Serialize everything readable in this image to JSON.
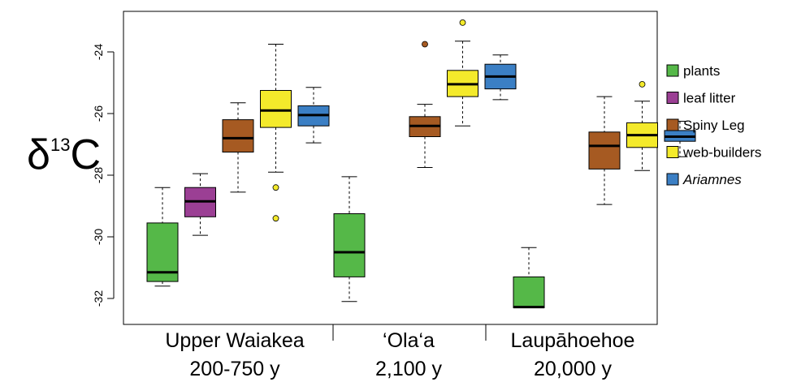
{
  "chart_data": {
    "type": "boxplot",
    "ylabel": {
      "main": "δ",
      "sup": "13",
      "tail": "C"
    },
    "ylim": [
      -32.6,
      -22.8
    ],
    "yticks": [
      -24,
      -26,
      -28,
      -30,
      -32
    ],
    "ytick_labels": [
      "-24",
      "-26",
      "-28",
      "-30",
      "-32"
    ],
    "grid": false,
    "legend_position": "right",
    "legend": [
      {
        "key": "plants",
        "label": "plants",
        "italic": false,
        "color": "#55b848"
      },
      {
        "key": "leaf_litter",
        "label": "leaf litter",
        "italic": false,
        "color": "#9b3f94"
      },
      {
        "key": "spiny_leg",
        "label": "Spiny Leg",
        "italic": false,
        "color": "#a65a22"
      },
      {
        "key": "web_builders",
        "label": "web-builders",
        "italic": false,
        "color": "#f4ea2b"
      },
      {
        "key": "ariamnes",
        "label": "Ariamnes",
        "italic": true,
        "color": "#3b7fc4"
      }
    ],
    "groups": [
      {
        "name": "Upper Waiakea",
        "age": "200-750 y"
      },
      {
        "name": "‘Ola‘a",
        "age": "2,100 y"
      },
      {
        "name": "Laupāhoehoe",
        "age": "20,000 y"
      }
    ],
    "boxes": [
      {
        "group": 0,
        "series": "plants",
        "whisker_low": -31.6,
        "q1": -31.45,
        "median": -31.15,
        "q3": -29.55,
        "whisker_high": -28.4,
        "outliers": []
      },
      {
        "group": 0,
        "series": "leaf_litter",
        "whisker_low": -29.95,
        "q1": -29.35,
        "median": -28.85,
        "q3": -28.4,
        "whisker_high": -27.95,
        "outliers": []
      },
      {
        "group": 0,
        "series": "spiny_leg",
        "whisker_low": -28.55,
        "q1": -27.25,
        "median": -26.8,
        "q3": -26.2,
        "whisker_high": -25.65,
        "outliers": []
      },
      {
        "group": 0,
        "series": "web_builders",
        "whisker_low": -27.9,
        "q1": -26.45,
        "median": -25.9,
        "q3": -25.25,
        "whisker_high": -23.75,
        "outliers": [
          -28.4,
          -29.4
        ]
      },
      {
        "group": 0,
        "series": "ariamnes",
        "whisker_low": -26.95,
        "q1": -26.4,
        "median": -26.05,
        "q3": -25.75,
        "whisker_high": -25.15,
        "outliers": []
      },
      {
        "group": 1,
        "series": "plants",
        "whisker_low": -32.1,
        "q1": -31.3,
        "median": -30.5,
        "q3": -29.25,
        "whisker_high": -28.05,
        "outliers": []
      },
      {
        "group": 1,
        "series": "spiny_leg",
        "whisker_low": -27.75,
        "q1": -26.75,
        "median": -26.4,
        "q3": -26.1,
        "whisker_high": -25.7,
        "outliers": [
          -23.75
        ]
      },
      {
        "group": 1,
        "series": "web_builders",
        "whisker_low": -26.4,
        "q1": -25.45,
        "median": -25.05,
        "q3": -24.6,
        "whisker_high": -23.65,
        "outliers": [
          -23.05
        ]
      },
      {
        "group": 1,
        "series": "ariamnes",
        "whisker_low": -25.55,
        "q1": -25.2,
        "median": -24.8,
        "q3": -24.4,
        "whisker_high": -24.1,
        "outliers": []
      },
      {
        "group": 2,
        "series": "plants",
        "whisker_low": -32.3,
        "q1": -32.3,
        "median": -32.28,
        "q3": -31.3,
        "whisker_high": -30.35,
        "outliers": []
      },
      {
        "group": 2,
        "series": "spiny_leg",
        "whisker_low": -28.95,
        "q1": -27.8,
        "median": -27.05,
        "q3": -26.6,
        "whisker_high": -25.45,
        "outliers": []
      },
      {
        "group": 2,
        "series": "web_builders",
        "whisker_low": -27.85,
        "q1": -27.1,
        "median": -26.7,
        "q3": -26.3,
        "whisker_high": -25.6,
        "outliers": [
          -25.05
        ]
      },
      {
        "group": 2,
        "series": "ariamnes",
        "whisker_low": -27.4,
        "q1": -26.9,
        "median": -26.75,
        "q3": -26.55,
        "whisker_high": -26.25,
        "outliers": []
      }
    ]
  }
}
